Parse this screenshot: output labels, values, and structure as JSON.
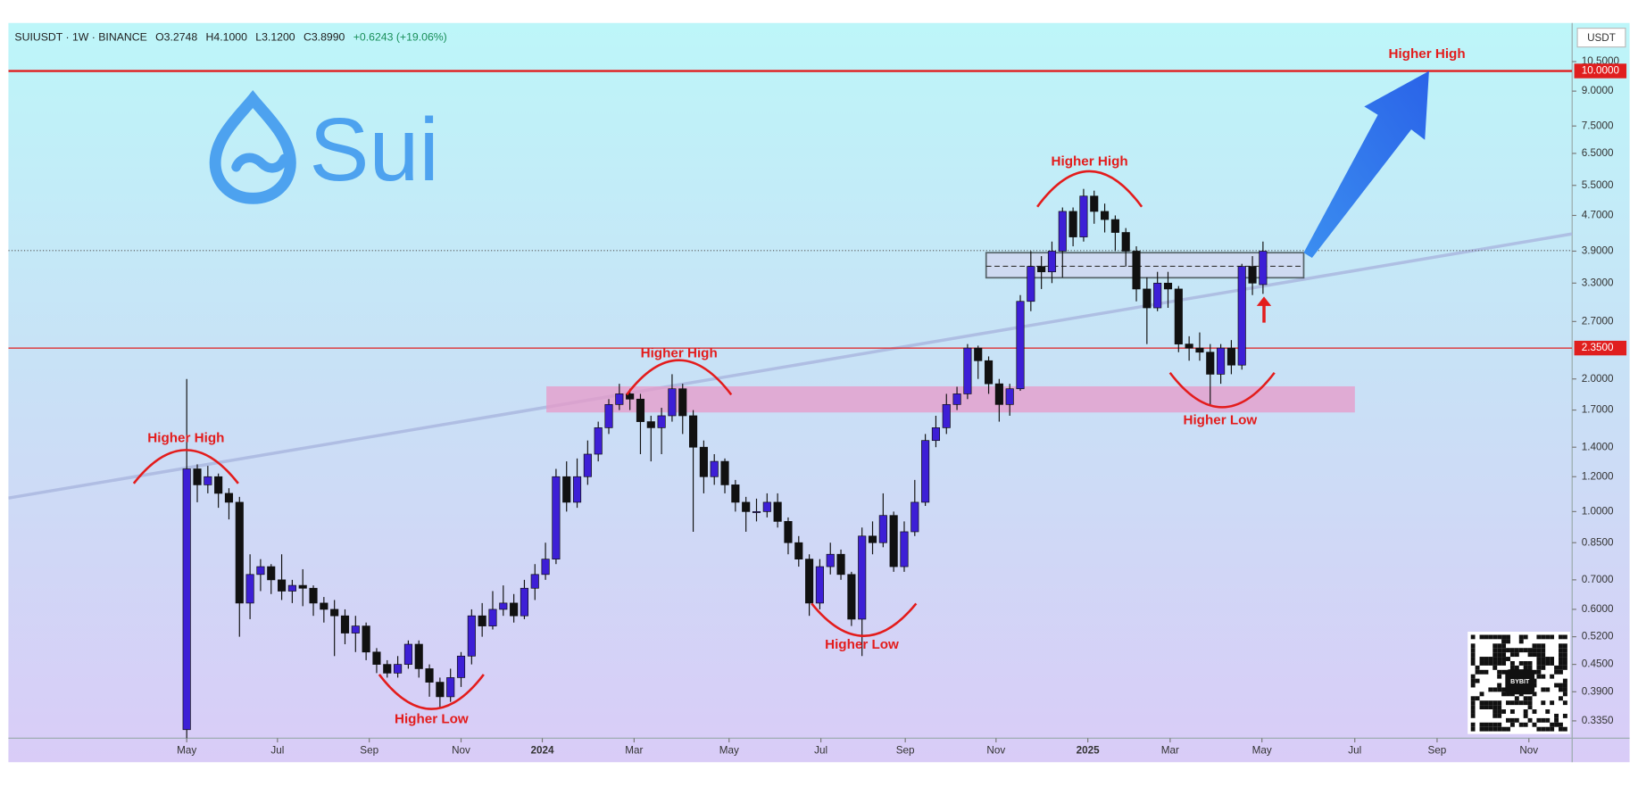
{
  "chart_data": {
    "type": "candlestick",
    "header": "SUIUSDT · 1W · BINANCE",
    "ohlc_labels": [
      "O3.2748",
      "H4.1000",
      "L3.1200",
      "C3.8990",
      "+0.6243 (+19.06%)"
    ],
    "y_axis_unit": "USDT",
    "logo_text": "Sui",
    "watermark": "BYBIT",
    "log_scale": true,
    "up_color": "#3d1fd6",
    "down_color": "#111111",
    "xlim": [
      -16.9,
      131.3
    ],
    "xticks": [
      {
        "value": 0,
        "label": "May"
      },
      {
        "value": 8.6,
        "label": "Jul"
      },
      {
        "value": 17.3,
        "label": "Sep"
      },
      {
        "value": 26,
        "label": "Nov"
      },
      {
        "value": 33.7,
        "label": "2024"
      },
      {
        "value": 42.4,
        "label": "Mar"
      },
      {
        "value": 51.4,
        "label": "May"
      },
      {
        "value": 60.1,
        "label": "Jul"
      },
      {
        "value": 68.1,
        "label": "Sep"
      },
      {
        "value": 76.7,
        "label": "Nov"
      },
      {
        "value": 85.4,
        "label": "2025"
      },
      {
        "value": 93.2,
        "label": "Mar"
      },
      {
        "value": 101.9,
        "label": "May"
      },
      {
        "value": 110.7,
        "label": "Jul"
      },
      {
        "value": 118.5,
        "label": "Sep"
      },
      {
        "value": 127.2,
        "label": "Nov"
      }
    ],
    "ylim": [
      0.306,
      12.85
    ],
    "yticks": [
      {
        "value": 10.5,
        "label": "10.5000"
      },
      {
        "value": 9,
        "label": "9.0000"
      },
      {
        "value": 7.5,
        "label": "7.5000"
      },
      {
        "value": 6.5,
        "label": "6.5000"
      },
      {
        "value": 5.5,
        "label": "5.5000"
      },
      {
        "value": 4.7,
        "label": "4.7000"
      },
      {
        "value": 3.9,
        "label": "3.9000"
      },
      {
        "value": 3.3,
        "label": "3.3000"
      },
      {
        "value": 2.7,
        "label": "2.7000"
      },
      {
        "value": 2,
        "label": "2.0000"
      },
      {
        "value": 1.7,
        "label": "1.7000"
      },
      {
        "value": 1.4,
        "label": "1.4000"
      },
      {
        "value": 1.2,
        "label": "1.2000"
      },
      {
        "value": 1,
        "label": "1.0000"
      },
      {
        "value": 0.85,
        "label": "0.8500"
      },
      {
        "value": 0.7,
        "label": "0.7000"
      },
      {
        "value": 0.6,
        "label": "0.6000"
      },
      {
        "value": 0.52,
        "label": "0.5200"
      },
      {
        "value": 0.45,
        "label": "0.4500"
      },
      {
        "value": 0.39,
        "label": "0.3900"
      },
      {
        "value": 0.335,
        "label": "0.3350"
      }
    ],
    "price_lines": [
      {
        "value": 10,
        "label": "10.0000",
        "color": "#e01e1e"
      },
      {
        "value": 2.35,
        "label": "2.3500",
        "color": "#e01e1e"
      }
    ],
    "annotations": [
      "Higher High",
      "Higher High",
      "Higher High",
      "Higher High",
      "Higher Low",
      "Higher Low",
      "Higher Low"
    ],
    "open": [
      0.32,
      1.25,
      1.15,
      1.2,
      1.1,
      1.05,
      0.62,
      0.72,
      0.75,
      0.7,
      0.66,
      0.68,
      0.67,
      0.62,
      0.6,
      0.58,
      0.53,
      0.55,
      0.48,
      0.45,
      0.43,
      0.45,
      0.5,
      0.44,
      0.41,
      0.38,
      0.42,
      0.47,
      0.58,
      0.55,
      0.6,
      0.62,
      0.58,
      0.67,
      0.72,
      0.78,
      1.2,
      1.05,
      1.2,
      1.35,
      1.55,
      1.75,
      1.85,
      1.8,
      1.6,
      1.55,
      1.65,
      1.9,
      1.65,
      1.4,
      1.2,
      1.3,
      1.15,
      1.05,
      1.0,
      1.0,
      1.05,
      0.95,
      0.85,
      0.78,
      0.62,
      0.75,
      0.8,
      0.72,
      0.57,
      0.88,
      0.85,
      0.98,
      0.75,
      0.9,
      1.05,
      1.45,
      1.55,
      1.75,
      1.85,
      2.35,
      2.2,
      1.95,
      1.75,
      1.9,
      3.0,
      3.6,
      3.5,
      3.9,
      4.8,
      4.2,
      5.2,
      4.8,
      4.6,
      4.3,
      3.9,
      3.2,
      2.9,
      3.3,
      3.2,
      2.4,
      2.35,
      2.3,
      2.05,
      2.35,
      2.15,
      3.6,
      3.2748
    ],
    "high": [
      2.0,
      1.28,
      1.27,
      1.22,
      1.13,
      1.08,
      0.8,
      0.78,
      0.76,
      0.8,
      0.7,
      0.74,
      0.68,
      0.64,
      0.63,
      0.6,
      0.58,
      0.56,
      0.49,
      0.46,
      0.47,
      0.51,
      0.51,
      0.45,
      0.42,
      0.44,
      0.48,
      0.6,
      0.62,
      0.66,
      0.68,
      0.65,
      0.7,
      0.76,
      0.85,
      1.25,
      1.3,
      1.32,
      1.45,
      1.6,
      1.8,
      1.95,
      1.9,
      1.85,
      1.65,
      1.72,
      2.05,
      1.95,
      1.7,
      1.45,
      1.35,
      1.32,
      1.18,
      1.08,
      1.07,
      1.1,
      1.1,
      0.97,
      0.88,
      0.8,
      0.78,
      0.85,
      0.82,
      0.73,
      0.92,
      0.95,
      1.1,
      1.0,
      0.95,
      1.18,
      1.5,
      1.65,
      1.85,
      1.92,
      2.4,
      2.38,
      2.25,
      2.0,
      1.95,
      3.1,
      3.9,
      3.8,
      4.1,
      4.9,
      4.9,
      5.4,
      5.35,
      5.0,
      4.7,
      4.4,
      4.0,
      3.4,
      3.5,
      3.5,
      3.25,
      2.5,
      2.55,
      2.4,
      2.4,
      2.45,
      3.65,
      3.8,
      4.1
    ],
    "low": [
      0.3,
      1.05,
      1.1,
      1.02,
      0.96,
      0.52,
      0.57,
      0.66,
      0.65,
      0.63,
      0.62,
      0.61,
      0.58,
      0.56,
      0.47,
      0.5,
      0.48,
      0.46,
      0.43,
      0.42,
      0.42,
      0.44,
      0.42,
      0.38,
      0.36,
      0.37,
      0.4,
      0.45,
      0.52,
      0.54,
      0.58,
      0.56,
      0.57,
      0.63,
      0.7,
      0.76,
      1.0,
      1.02,
      1.15,
      1.3,
      1.5,
      1.7,
      1.7,
      1.35,
      1.3,
      1.35,
      1.6,
      1.5,
      0.9,
      1.1,
      1.15,
      1.1,
      1.0,
      0.9,
      0.95,
      0.97,
      0.92,
      0.8,
      0.75,
      0.58,
      0.6,
      0.72,
      0.7,
      0.55,
      0.47,
      0.8,
      0.83,
      0.73,
      0.73,
      0.88,
      1.03,
      1.4,
      1.5,
      1.7,
      1.8,
      2.0,
      1.85,
      1.6,
      1.65,
      1.88,
      2.85,
      3.2,
      3.3,
      3.4,
      4.0,
      4.1,
      4.5,
      4.3,
      3.9,
      3.6,
      3.0,
      2.4,
      2.85,
      2.9,
      2.3,
      2.2,
      2.2,
      1.75,
      1.95,
      2.05,
      2.1,
      3.1,
      3.12
    ],
    "close": [
      1.25,
      1.15,
      1.2,
      1.1,
      1.05,
      0.62,
      0.72,
      0.75,
      0.7,
      0.66,
      0.68,
      0.67,
      0.62,
      0.6,
      0.58,
      0.53,
      0.55,
      0.48,
      0.45,
      0.43,
      0.45,
      0.5,
      0.44,
      0.41,
      0.38,
      0.42,
      0.47,
      0.58,
      0.55,
      0.6,
      0.62,
      0.58,
      0.67,
      0.72,
      0.78,
      1.2,
      1.05,
      1.2,
      1.35,
      1.55,
      1.75,
      1.85,
      1.8,
      1.6,
      1.55,
      1.65,
      1.9,
      1.65,
      1.4,
      1.2,
      1.3,
      1.15,
      1.05,
      1.0,
      1.0,
      1.05,
      0.95,
      0.85,
      0.78,
      0.62,
      0.75,
      0.8,
      0.72,
      0.57,
      0.88,
      0.85,
      0.98,
      0.75,
      0.9,
      1.05,
      1.45,
      1.55,
      1.75,
      1.85,
      2.35,
      2.2,
      1.95,
      1.75,
      1.9,
      3.0,
      3.6,
      3.5,
      3.9,
      4.8,
      4.2,
      5.2,
      4.8,
      4.6,
      4.3,
      3.9,
      3.2,
      2.9,
      3.3,
      3.2,
      2.4,
      2.35,
      2.3,
      2.05,
      2.35,
      2.15,
      3.6,
      3.3,
      3.899
    ]
  }
}
